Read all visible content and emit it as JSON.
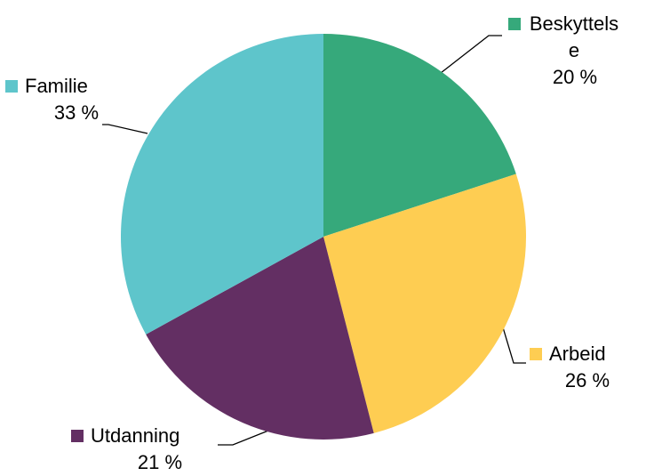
{
  "chart_data": {
    "type": "pie",
    "categories": [
      "Beskyttelse",
      "Arbeid",
      "Utdanning",
      "Familie"
    ],
    "values": [
      20,
      26,
      21,
      33
    ],
    "value_labels": [
      "20 %",
      "26 %",
      "21 %",
      "33 %"
    ],
    "colors": [
      "#36a97b",
      "#fecd52",
      "#632f63",
      "#5ec5cb"
    ]
  }
}
